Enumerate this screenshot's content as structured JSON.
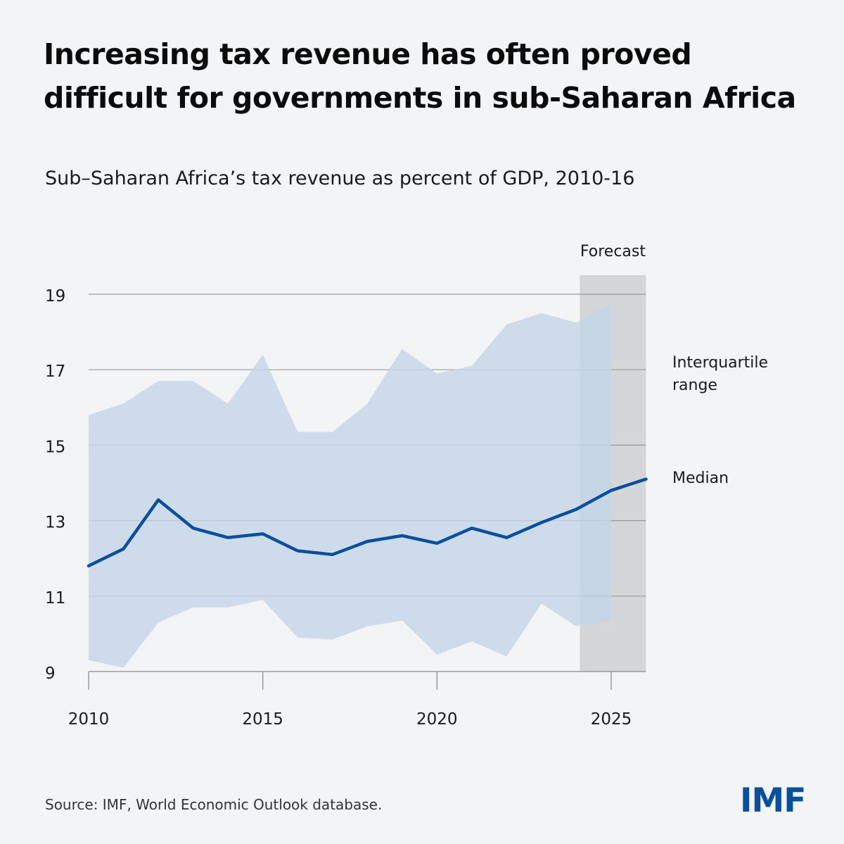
{
  "header": {
    "title": "Increasing tax revenue has often proved difficult for governments in sub-Saharan Africa",
    "subtitle": "Sub–Saharan Africa’s tax revenue as percent of GDP, 2010-16"
  },
  "footer": {
    "source": "Source:  IMF, World Economic Outlook database.",
    "logo_text": "IMF"
  },
  "colors": {
    "background": "#f3f4f6",
    "band": "#c5d6e6",
    "median": "#0a4f9c",
    "forecast_shade": "#8f9390",
    "grid": "#9a9a9a",
    "logo": "#0a4f9c"
  },
  "chart_data": {
    "type": "area",
    "title": "Sub–Saharan Africa’s tax revenue as percent of GDP, 2010-16",
    "xlabel": "",
    "ylabel": "",
    "xlim": [
      2010,
      2026
    ],
    "ylim": [
      9,
      19
    ],
    "x_ticks": [
      2010,
      2015,
      2020,
      2025
    ],
    "y_ticks": [
      9,
      11,
      13,
      15,
      17,
      19
    ],
    "grid": true,
    "x": [
      2010,
      2011,
      2012,
      2013,
      2014,
      2015,
      2016,
      2017,
      2018,
      2019,
      2020,
      2021,
      2022,
      2023,
      2024,
      2025,
      2026
    ],
    "series": [
      {
        "name": "Interquartile range",
        "kind": "band",
        "x": [
          2010,
          2011,
          2012,
          2013,
          2014,
          2015,
          2016,
          2017,
          2018,
          2019,
          2020,
          2021,
          2022,
          2023,
          2024,
          2025
        ],
        "upper": [
          15.8,
          16.1,
          16.7,
          16.7,
          16.1,
          17.4,
          15.35,
          15.35,
          16.1,
          17.55,
          16.9,
          17.1,
          18.2,
          18.5,
          18.25,
          18.75
        ],
        "lower": [
          9.3,
          9.1,
          10.3,
          10.7,
          10.7,
          10.9,
          9.9,
          9.85,
          10.2,
          10.35,
          9.45,
          9.8,
          9.4,
          10.8,
          10.2,
          10.35
        ]
      },
      {
        "name": "Median",
        "kind": "line",
        "x": [
          2010,
          2011,
          2012,
          2013,
          2014,
          2015,
          2016,
          2017,
          2018,
          2019,
          2020,
          2021,
          2022,
          2023,
          2024,
          2025,
          2026
        ],
        "values": [
          11.8,
          12.25,
          13.55,
          12.8,
          12.55,
          12.65,
          12.2,
          12.1,
          12.45,
          12.6,
          12.4,
          12.8,
          12.55,
          12.95,
          13.3,
          13.8,
          14.1
        ]
      }
    ],
    "forecast": {
      "label": "Forecast",
      "start": 2024.1,
      "end": 2026
    }
  }
}
